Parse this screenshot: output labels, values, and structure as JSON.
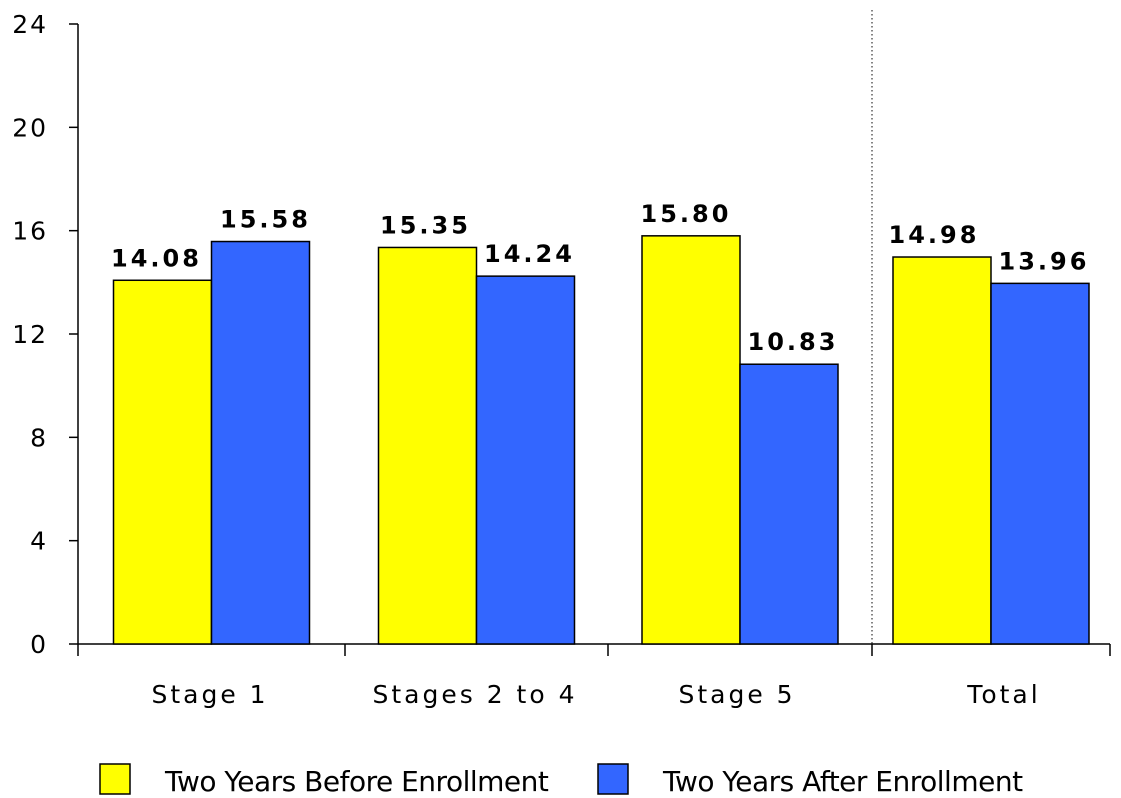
{
  "chart_data": {
    "type": "bar",
    "categories": [
      "Stage 1",
      "Stages 2 to 4",
      "Stage 5",
      "Total"
    ],
    "series": [
      {
        "name": "Two Years Before Enrollment",
        "values": [
          14.08,
          15.35,
          15.8,
          14.98
        ],
        "labels": [
          "14.08",
          "15.35",
          "15.80",
          "14.98"
        ],
        "color": "#FFFF00"
      },
      {
        "name": "Two Years After Enrollment",
        "values": [
          15.58,
          14.24,
          10.83,
          13.96
        ],
        "labels": [
          "15.58",
          "14.24",
          "10.83",
          "13.96"
        ],
        "color": "#3366FF"
      }
    ],
    "ylim": [
      0,
      24
    ],
    "yticks": [
      "0",
      "4",
      "8",
      "12",
      "16",
      "20",
      "24"
    ],
    "separator_before_category": "Total",
    "legend_position": "bottom",
    "grid": false
  }
}
